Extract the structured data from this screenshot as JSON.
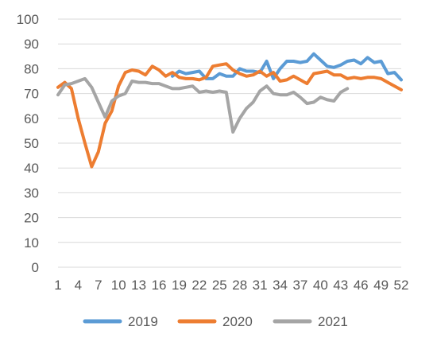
{
  "chart_data": {
    "type": "line",
    "title": "",
    "xlabel": "",
    "ylabel": "",
    "ylim": [
      0,
      100
    ],
    "yticks": [
      "0",
      "10",
      "20",
      "30",
      "40",
      "50",
      "60",
      "70",
      "80",
      "90",
      "100"
    ],
    "xlim": [
      1,
      52
    ],
    "xticks": [
      "1",
      "4",
      "7",
      "10",
      "13",
      "16",
      "19",
      "22",
      "25",
      "28",
      "31",
      "34",
      "37",
      "40",
      "43",
      "46",
      "49",
      "52"
    ],
    "grid": true,
    "legend_position": "bottom",
    "series": [
      {
        "name": "2019",
        "color": "#5b9bd5",
        "x": [
          18,
          19,
          20,
          21,
          22,
          23,
          24,
          25,
          26,
          27,
          28,
          29,
          30,
          31,
          32,
          33,
          34,
          35,
          36,
          37,
          38,
          39,
          40,
          41,
          42,
          43,
          44,
          45,
          46,
          47,
          48,
          49,
          50,
          51,
          52
        ],
        "y": [
          77,
          79,
          78,
          78.5,
          79,
          76,
          76,
          78,
          77,
          77,
          80,
          79,
          79,
          78.5,
          83,
          76,
          80,
          83,
          83,
          82.5,
          83,
          86,
          83.5,
          81,
          80.5,
          81.5,
          83,
          83.5,
          82,
          84.5,
          82.5,
          83,
          78,
          78.5,
          75.5
        ]
      },
      {
        "name": "2020",
        "color": "#ed7d31",
        "x": [
          1,
          2,
          3,
          4,
          5,
          6,
          7,
          8,
          9,
          10,
          11,
          12,
          13,
          14,
          15,
          16,
          17,
          18,
          19,
          20,
          21,
          22,
          23,
          24,
          25,
          26,
          27,
          28,
          29,
          30,
          31,
          32,
          33,
          34,
          35,
          36,
          37,
          38,
          39,
          40,
          41,
          42,
          43,
          44,
          45,
          46,
          47,
          48,
          49,
          50,
          51,
          52
        ],
        "y": [
          72.5,
          74.5,
          72,
          60,
          50,
          40.5,
          46.5,
          58,
          63,
          73,
          78.5,
          79.5,
          79,
          77.5,
          81,
          79.5,
          77,
          78.5,
          76.5,
          76,
          76,
          75.5,
          76.5,
          81,
          81.5,
          82,
          79.5,
          78,
          77,
          77.5,
          79,
          77,
          78.5,
          75,
          75.5,
          77,
          75.5,
          74,
          78,
          78.5,
          79,
          77.5,
          77.5,
          76,
          76.5,
          76,
          76.5,
          76.5,
          76,
          74.5,
          73,
          71.5
        ]
      },
      {
        "name": "2021",
        "color": "#a5a5a5",
        "x": [
          1,
          2,
          3,
          4,
          5,
          6,
          7,
          8,
          9,
          10,
          11,
          12,
          13,
          14,
          15,
          16,
          17,
          18,
          19,
          20,
          21,
          22,
          23,
          24,
          25,
          26,
          27,
          28,
          29,
          30,
          31,
          32,
          33,
          34,
          35,
          36,
          37,
          38,
          39,
          40,
          41,
          42,
          43,
          44
        ],
        "y": [
          69.5,
          73.5,
          74,
          75,
          76,
          72.5,
          66.5,
          60.5,
          67,
          69,
          70,
          75,
          74.5,
          74.5,
          74,
          74,
          73,
          72,
          72,
          72.5,
          73,
          70.5,
          71,
          70.5,
          71,
          70.5,
          54.5,
          60,
          64,
          66.5,
          71,
          73,
          70,
          69.5,
          69.5,
          70.5,
          68.5,
          66,
          66.5,
          68.5,
          67.5,
          67,
          70.5,
          72
        ]
      }
    ]
  }
}
